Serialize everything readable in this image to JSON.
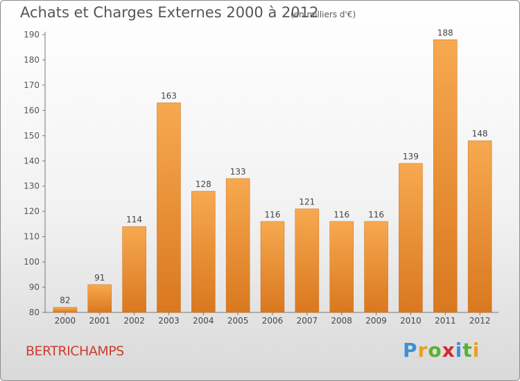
{
  "title": "Achats et Charges Externes 2000 à 2012",
  "subtitle": "(en milliers d'€)",
  "commune": "BERTRICHAMPS",
  "brand": {
    "letters": [
      "P",
      "r",
      "o",
      "x",
      "i",
      "t",
      "i"
    ],
    "colors": [
      "#3d8fd6",
      "#e8a020",
      "#5bb030",
      "#d42a2a",
      "#3d8fd6",
      "#5bb030",
      "#e8a020"
    ]
  },
  "colors": {
    "bar_light": "#f7a94f",
    "bar_dark": "#d9781f",
    "text": "#555555",
    "brand_red": "#cc3d2e"
  },
  "chart_data": {
    "type": "bar",
    "categories": [
      "2000",
      "2001",
      "2002",
      "2003",
      "2004",
      "2005",
      "2006",
      "2007",
      "2008",
      "2009",
      "2010",
      "2011",
      "2012"
    ],
    "values": [
      82,
      91,
      114,
      163,
      128,
      133,
      116,
      121,
      116,
      116,
      139,
      188,
      148
    ],
    "ylim": [
      80,
      190
    ],
    "yticks": [
      80,
      90,
      100,
      110,
      120,
      130,
      140,
      150,
      160,
      170,
      180,
      190
    ],
    "grid": false,
    "data_labels": true
  }
}
